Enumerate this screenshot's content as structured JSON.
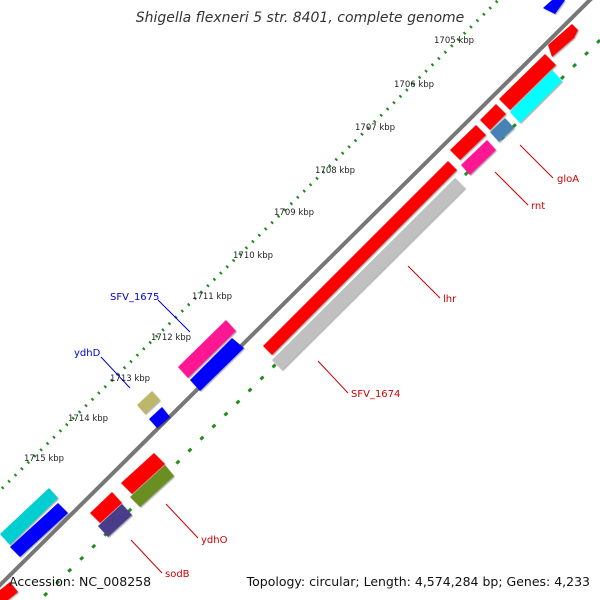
{
  "title": "Shigella flexneri 5 str. 8401, complete genome",
  "footer": {
    "accession": "Accession: NC_008258",
    "summary": "Topology: circular; Length: 4,574,284 bp; Genes: 4,233"
  },
  "ruler": [
    "1705 kbp",
    "1706 kbp",
    "1707 kbp",
    "1708 kbp",
    "1709 kbp",
    "1710 kbp",
    "1711 kbp",
    "1712 kbp",
    "1713 kbp",
    "1714 kbp",
    "1715 kbp"
  ],
  "gene_labels": {
    "sfv1675": "SFV_1675",
    "ydhD": "ydhD",
    "gloA": "gloA",
    "rnt": "rnt",
    "lhr": "lhr",
    "sfv1674": "SFV_1674",
    "ydhO": "ydhO",
    "sodB": "sodB"
  },
  "colors": {
    "red": "#ff0000",
    "blue": "#0000ff",
    "cyan": "#00ffff",
    "magenta": "#ff1493",
    "grey": "#c0c0c0",
    "olive": "#6b8e23",
    "khaki": "#bdb76b",
    "steel": "#4682b4",
    "slate": "#483d8b",
    "backbone": "#777777",
    "tick": "#228b22",
    "label_blue": "#0000cc",
    "label_red": "#cc0000"
  }
}
